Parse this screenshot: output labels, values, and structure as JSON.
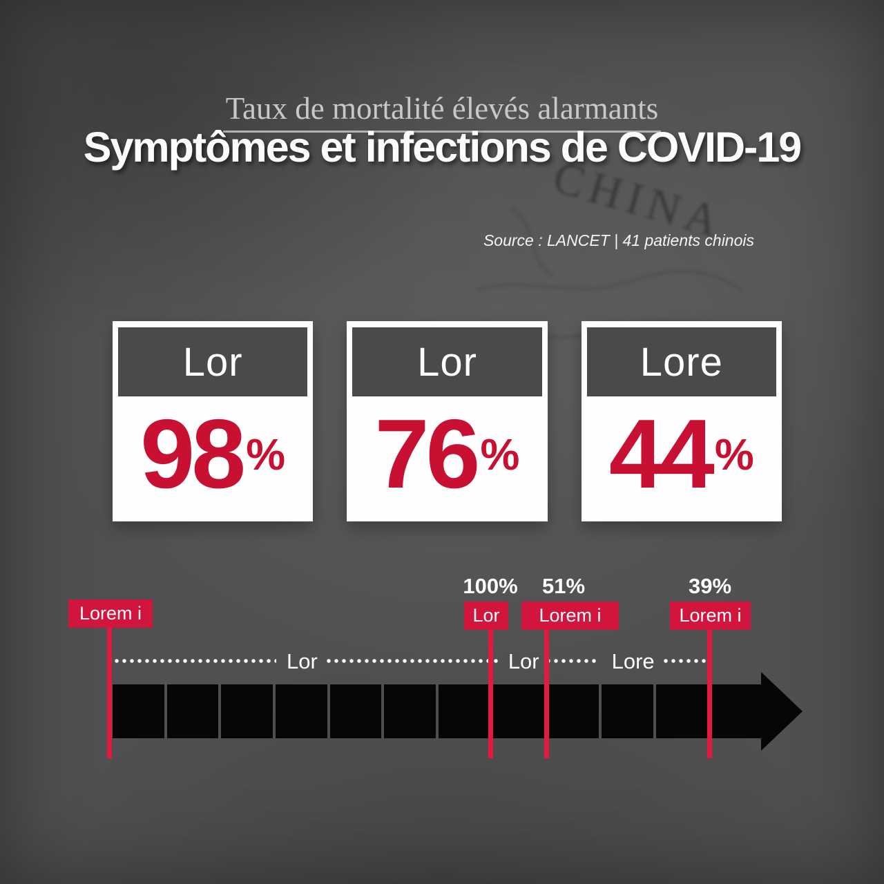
{
  "header": {
    "subtitle": "Taux de mortalité élevés alarmants",
    "title": "Symptômes et infections de COVID-19",
    "source": "Source : LANCET | 41 patients chinois"
  },
  "background": {
    "map_label": "CHINA"
  },
  "cards": [
    {
      "label": "Lor",
      "value": "98",
      "unit": "%"
    },
    {
      "label": "Lor",
      "value": "76",
      "unit": "%"
    },
    {
      "label": "Lore",
      "value": "44",
      "unit": "%"
    }
  ],
  "timeline": {
    "markers": [
      {
        "percent": "",
        "badge": "Lorem i"
      },
      {
        "percent": "100%",
        "badge": "Lor"
      },
      {
        "percent": "51%",
        "badge": "Lorem i"
      },
      {
        "percent": "39%",
        "badge": "Lorem i"
      }
    ],
    "leader_labels": [
      "Lor",
      "Lor",
      "Lore"
    ]
  },
  "colors": {
    "number_red": "#c81132",
    "badge_red": "#d2153c",
    "line_red": "#e21a40",
    "card_header_gray": "#4a494b",
    "arrow_black": "#070506",
    "background_gray": "#4e4d4f"
  },
  "chart_data": [
    {
      "type": "table",
      "title": "Symptômes et infections de COVID-19",
      "subtitle": "Taux de mortalité élevés alarmants",
      "source": "Source : LANCET | 41 patients chinois",
      "categories": [
        "Lor",
        "Lor",
        "Lore"
      ],
      "values": [
        98,
        76,
        44
      ],
      "unit": "%"
    },
    {
      "type": "table",
      "categories": [
        "Lorem i",
        "Lor",
        "Lorem i",
        "Lorem i"
      ],
      "values": [
        null,
        100,
        51,
        39
      ],
      "unit": "%",
      "segment_labels": [
        "Lor",
        "Lor",
        "Lore"
      ]
    }
  ]
}
